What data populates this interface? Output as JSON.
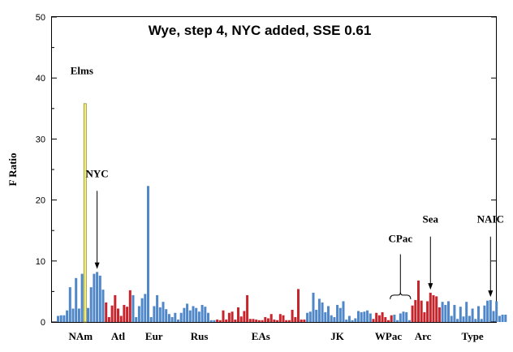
{
  "chart_data": {
    "type": "bar",
    "title": "Wye, step 4, NYC added, SSE 0.61",
    "ylabel": "F Ratio",
    "xlabel": "",
    "ylim": [
      0,
      50
    ],
    "yticks": [
      0,
      10,
      20,
      30,
      40,
      50
    ],
    "grid": false,
    "colors": {
      "blue": "#4f87c9",
      "red": "#c8242c",
      "yellow": "#f7f47c",
      "yellowEdge": "#8f8a2a"
    },
    "values": [
      1.0,
      1.1,
      1.1,
      1.9,
      5.7,
      2.2,
      7.2,
      2.2,
      7.9,
      35.8,
      2.3,
      5.7,
      7.9,
      8.2,
      7.6,
      5.3,
      3.2,
      0.8,
      2.7,
      4.4,
      2.2,
      1.0,
      2.8,
      2.5,
      5.2,
      4.4,
      0.8,
      2.6,
      3.9,
      4.6,
      22.3,
      0.8,
      2.6,
      4.4,
      2.4,
      3.3,
      2.1,
      1.3,
      0.8,
      1.5,
      0.4,
      1.5,
      2.3,
      3.0,
      1.9,
      2.6,
      2.3,
      1.7,
      2.8,
      2.5,
      1.5,
      0.3,
      0.3,
      0.4,
      0.3,
      1.9,
      0.4,
      1.5,
      1.7,
      0.4,
      2.4,
      0.9,
      1.8,
      4.4,
      0.5,
      0.5,
      0.4,
      0.3,
      0.3,
      0.8,
      0.6,
      1.3,
      0.4,
      0.3,
      1.3,
      1.1,
      0.3,
      0.3,
      2.0,
      0.8,
      5.4,
      0.4,
      0.4,
      1.5,
      1.7,
      4.8,
      2.0,
      3.8,
      3.2,
      1.6,
      2.6,
      1.1,
      0.8,
      2.8,
      2.3,
      3.4,
      0.4,
      1.0,
      0.3,
      0.6,
      1.8,
      1.6,
      1.7,
      1.9,
      1.4,
      0.5,
      1.5,
      1.1,
      1.6,
      0.8,
      0.3,
      1.1,
      1.2,
      0.3,
      1.4,
      1.7,
      1.6,
      0.3,
      2.7,
      3.6,
      6.8,
      3.5,
      1.6,
      3.4,
      4.8,
      4.4,
      4.2,
      2.4,
      3.3,
      2.8,
      3.4,
      1.0,
      2.8,
      0.5,
      2.5,
      0.9,
      3.3,
      1.0,
      2.2,
      0.5,
      2.6,
      0.5,
      2.7,
      3.5,
      3.6,
      1.8,
      3.4,
      1.0,
      1.2,
      1.2
    ],
    "colorIndex": [
      "b",
      "b",
      "b",
      "b",
      "b",
      "b",
      "b",
      "b",
      "b",
      "y",
      "b",
      "b",
      "b",
      "b",
      "b",
      "b",
      "r",
      "r",
      "r",
      "r",
      "r",
      "r",
      "r",
      "r",
      "r",
      "b",
      "b",
      "b",
      "b",
      "b",
      "b",
      "b",
      "b",
      "b",
      "b",
      "b",
      "b",
      "b",
      "b",
      "b",
      "b",
      "b",
      "b",
      "b",
      "b",
      "b",
      "b",
      "b",
      "b",
      "b",
      "b",
      "b",
      "b",
      "r",
      "r",
      "r",
      "r",
      "r",
      "r",
      "r",
      "r",
      "r",
      "r",
      "r",
      "r",
      "r",
      "r",
      "r",
      "r",
      "r",
      "r",
      "r",
      "r",
      "r",
      "r",
      "r",
      "r",
      "r",
      "r",
      "r",
      "r",
      "r",
      "r",
      "b",
      "b",
      "b",
      "b",
      "b",
      "b",
      "b",
      "b",
      "b",
      "b",
      "b",
      "b",
      "b",
      "b",
      "b",
      "b",
      "b",
      "b",
      "b",
      "b",
      "b",
      "b",
      "r",
      "r",
      "r",
      "r",
      "r",
      "r",
      "r",
      "b",
      "b",
      "b",
      "b",
      "b",
      "b",
      "r",
      "r",
      "r",
      "r",
      "r",
      "r",
      "r",
      "r",
      "r",
      "r",
      "b",
      "b",
      "b",
      "b",
      "b",
      "b",
      "b",
      "b",
      "b",
      "b",
      "b",
      "b",
      "b",
      "b",
      "b",
      "b",
      "b",
      "b",
      "b",
      "b",
      "b",
      "b"
    ],
    "groups": [
      {
        "label": "NAm",
        "from": 0,
        "to": 15
      },
      {
        "label": "Atl",
        "from": 16,
        "to": 24
      },
      {
        "label": "Eur",
        "from": 25,
        "to": 40
      },
      {
        "label": "Rus",
        "from": 41,
        "to": 52
      },
      {
        "label": "EAs",
        "from": 53,
        "to": 82
      },
      {
        "label": "JK",
        "from": 83,
        "to": 103
      },
      {
        "label": "WPac",
        "from": 104,
        "to": 116
      },
      {
        "label": "Arc",
        "from": 117,
        "to": 126
      },
      {
        "label": "Type",
        "from": 127,
        "to": 149
      }
    ],
    "annotations": [
      {
        "label": "Elms",
        "bar": 9,
        "kind": "text"
      },
      {
        "label": "NYC",
        "bar": 13,
        "kind": "arrow",
        "from": 21.5
      },
      {
        "label": "CPac",
        "from": 111,
        "to": 117,
        "kind": "brace"
      },
      {
        "label": "Sea",
        "bar": 124,
        "kind": "arrow",
        "from": 14.0
      },
      {
        "label": "NAIC",
        "bar": 144,
        "kind": "arrow",
        "from": 14.0
      }
    ]
  }
}
